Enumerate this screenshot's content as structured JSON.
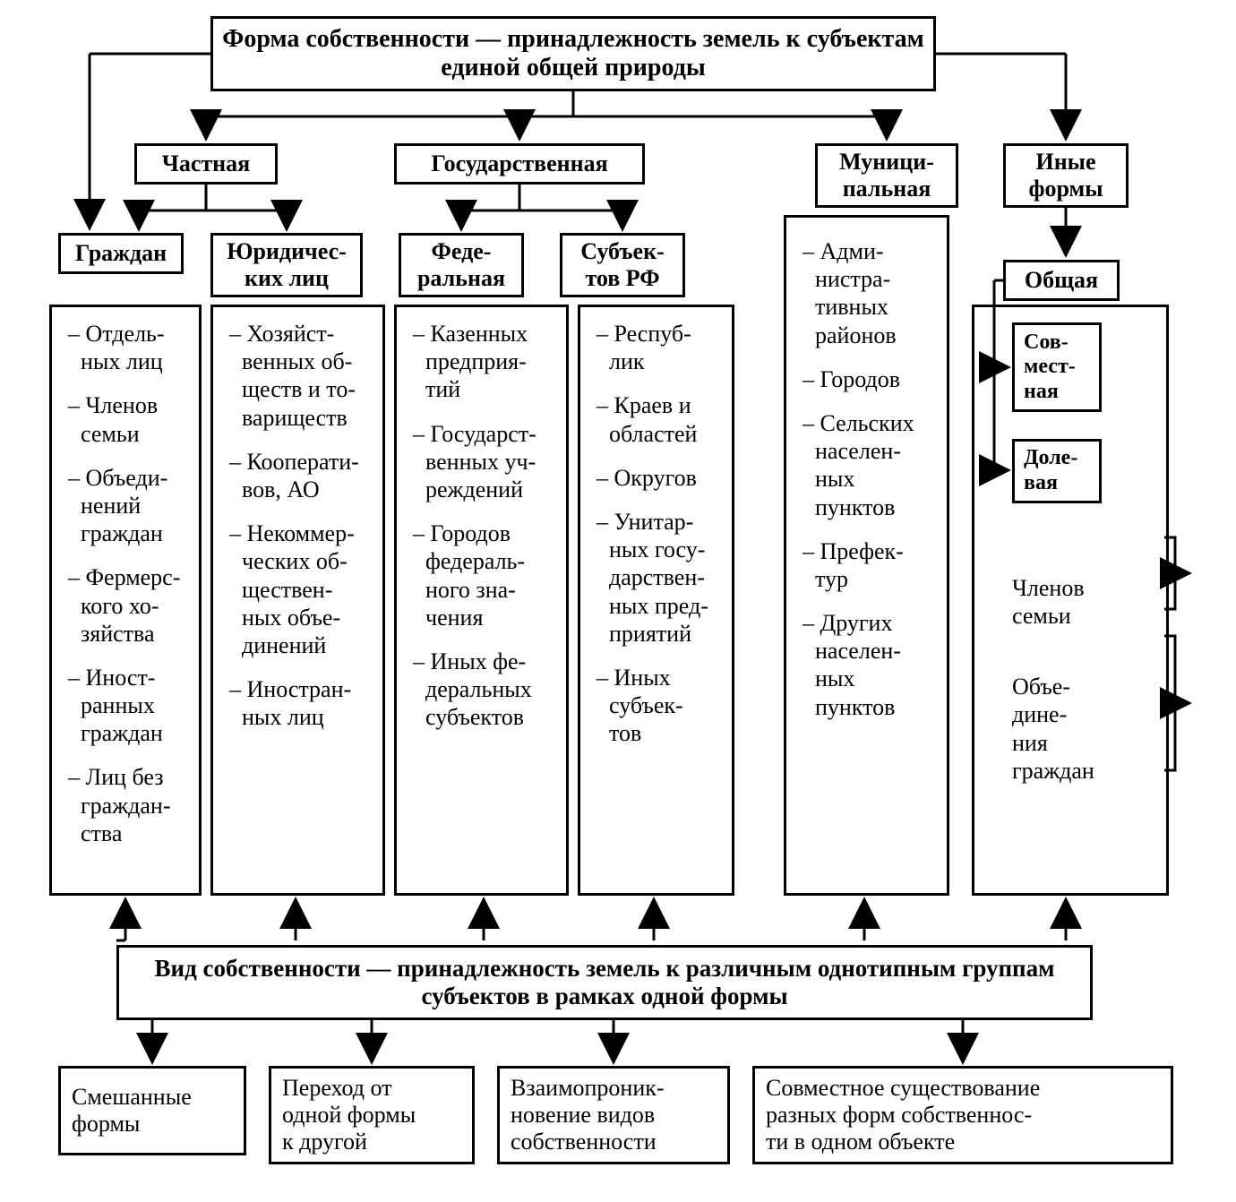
{
  "diagram": {
    "type": "flowchart",
    "background_color": "#ffffff",
    "stroke_color": "#000000",
    "stroke_width": 3,
    "font_family": "Times New Roman",
    "title_fontsize": 28,
    "node_fontsize": 26,
    "list_fontsize": 26,
    "header": "Форма собственности — принадлежность земель к субъектам единой общей природы",
    "level2": {
      "private": "Частная",
      "state": "Государственная",
      "municipal": "Муници-\nпальная",
      "other": "Иные\nформы"
    },
    "level3": {
      "citizens": "Граждан",
      "legal": "Юридичес-\nких лиц",
      "federal": "Феде-\nральная",
      "subjects": "Субъек-\nтов РФ",
      "common": "Общая",
      "joint": "Сов-\nмест-\nная",
      "share": "Доле-\nвая"
    },
    "columns": {
      "citizens_items": [
        "Отдель-\nных лиц",
        "Членов\nсемьи",
        "Объеди-\nнений\nграждан",
        "Фермерс-\nкого хо-\nзяйства",
        "Иност-\nранных\nграждан",
        "Лиц без\nграждан-\nства"
      ],
      "legal_items": [
        "Хозяйст-\nвенных об-\nществ и то-\nвариществ",
        "Кооперати-\nвов, АО",
        "Некоммер-\nческих об-\nществен-\nных объе-\nдинений",
        "Иностран-\nных лиц"
      ],
      "federal_items": [
        "Казенных\nпредприя-\nтий",
        "Государст-\nвенных уч-\nреждений",
        "Городов\nфедераль-\nного зна-\nчения",
        "Иных фе-\nдеральных\nсубъектов"
      ],
      "subjects_items": [
        "Респуб-\nлик",
        "Краев и\nобластей",
        "Округов",
        "Унитар-\nных госу-\nдарствен-\nных пред-\nприятий",
        "Иных\nсубъек-\nтов"
      ],
      "municipal_items": [
        "Адми-\nнистра-\nтивных\nрайонов",
        "Городов",
        "Сельских\nнаселен-\nных\nпунктов",
        "Префек-\nтур",
        "Других\nнаселен-\nных\nпунктов"
      ],
      "other_side": {
        "family": "Членов\nсемьи",
        "unions": "Объе-\nдине-\nния\nграждан"
      }
    },
    "footer": "Вид собственности — принадлежность земель к различным однотипным группам субъектов в рамках одной формы",
    "bottom": {
      "mixed": "Смешанные\nформы",
      "transition": "Переход от\nодной формы\nк другой",
      "interpen": "Взаимопроник-\nновение видов\nсобственности",
      "coexist": "Совместное существование\nразных форм собственнос-\nти в одном объекте"
    }
  }
}
